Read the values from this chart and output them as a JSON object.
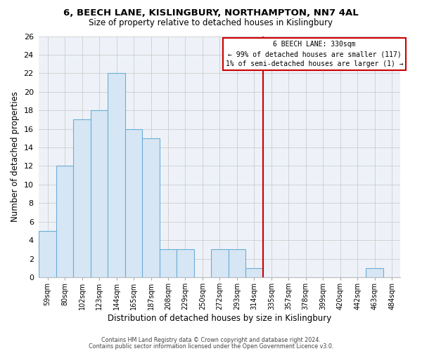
{
  "title": "6, BEECH LANE, KISLINGBURY, NORTHAMPTON, NN7 4AL",
  "subtitle": "Size of property relative to detached houses in Kislingbury",
  "xlabel": "Distribution of detached houses by size in Kislingbury",
  "ylabel": "Number of detached properties",
  "bins": [
    "59sqm",
    "80sqm",
    "102sqm",
    "123sqm",
    "144sqm",
    "165sqm",
    "187sqm",
    "208sqm",
    "229sqm",
    "250sqm",
    "272sqm",
    "293sqm",
    "314sqm",
    "335sqm",
    "357sqm",
    "378sqm",
    "399sqm",
    "420sqm",
    "442sqm",
    "463sqm",
    "484sqm"
  ],
  "counts": [
    5,
    12,
    17,
    18,
    22,
    16,
    15,
    3,
    3,
    0,
    3,
    3,
    1,
    0,
    0,
    0,
    0,
    0,
    0,
    1,
    0
  ],
  "bar_color": "#d6e6f4",
  "bar_edge_color": "#6aaed6",
  "grid_color": "#cccccc",
  "bg_color": "#eef2f8",
  "marker_label": "6 BEECH LANE: 330sqm",
  "annotation_line1": "← 99% of detached houses are smaller (117)",
  "annotation_line2": "1% of semi-detached houses are larger (1) →",
  "marker_color": "#cc0000",
  "box_edge_color": "#cc0000",
  "ylim": [
    0,
    26
  ],
  "yticks": [
    0,
    2,
    4,
    6,
    8,
    10,
    12,
    14,
    16,
    18,
    20,
    22,
    24,
    26
  ],
  "marker_bin_index": 13,
  "footer1": "Contains HM Land Registry data © Crown copyright and database right 2024.",
  "footer2": "Contains public sector information licensed under the Open Government Licence v3.0."
}
